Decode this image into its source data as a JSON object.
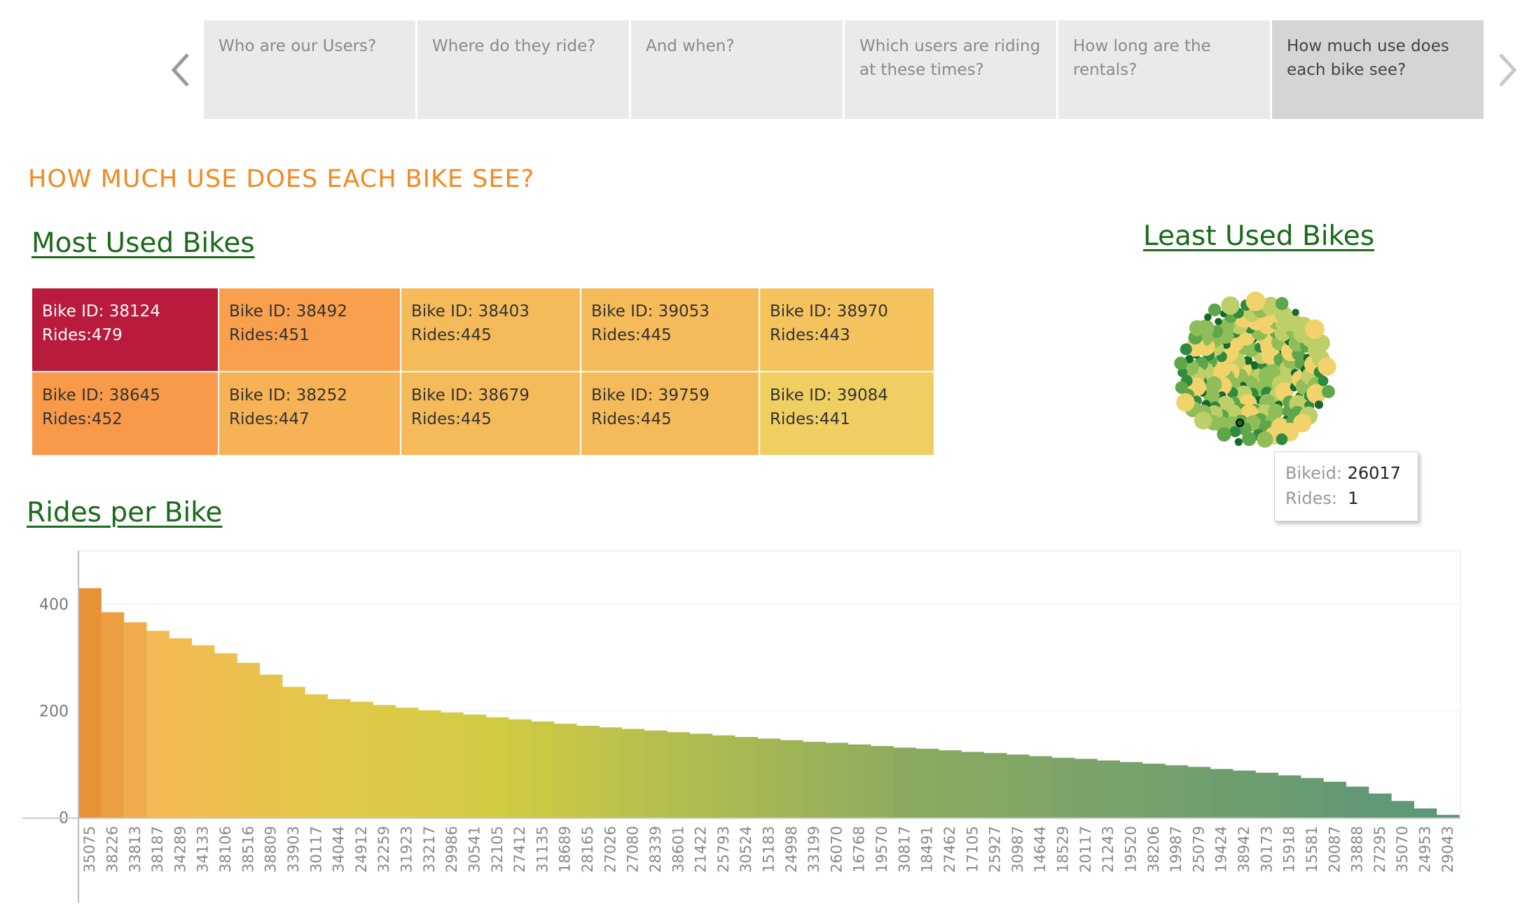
{
  "story": {
    "tabs": [
      {
        "label": "Who are our Users?",
        "active": false
      },
      {
        "label": "Where do they ride?",
        "active": false
      },
      {
        "label": "And when?",
        "active": false
      },
      {
        "label": "Which users are riding at these times?",
        "active": false
      },
      {
        "label": "How long are the rentals?",
        "active": false
      },
      {
        "label": "How much use does each bike see?",
        "active": true
      }
    ],
    "prev_icon": "chevron-left-icon",
    "next_icon": "chevron-right-icon"
  },
  "section_title": "HOW MUCH USE DOES EACH BIKE SEE?",
  "most_used": {
    "title": "Most Used Bikes",
    "id_label": "Bike ID: ",
    "rides_label": "Rides:",
    "tiles": [
      {
        "id": "38124",
        "rides": "479",
        "color": "#b81b3c"
      },
      {
        "id": "38492",
        "rides": "451",
        "color": "#f8a04e"
      },
      {
        "id": "38403",
        "rides": "445",
        "color": "#f5bb5a"
      },
      {
        "id": "39053",
        "rides": "445",
        "color": "#f5bb5a"
      },
      {
        "id": "38970",
        "rides": "443",
        "color": "#f5c35e"
      },
      {
        "id": "38645",
        "rides": "452",
        "color": "#f99a4a"
      },
      {
        "id": "38252",
        "rides": "447",
        "color": "#f7b256"
      },
      {
        "id": "38679",
        "rides": "445",
        "color": "#f5bb5a"
      },
      {
        "id": "39759",
        "rides": "445",
        "color": "#f5bb5a"
      },
      {
        "id": "39084",
        "rides": "441",
        "color": "#f0cf62"
      }
    ]
  },
  "least_used": {
    "title": "Least Used Bikes",
    "tooltip": {
      "bikeid_label": "Bikeid:",
      "bikeid": "26017",
      "rides_label": "Rides:",
      "rides": "1"
    },
    "palette": [
      "#f2d36b",
      "#bfcf68",
      "#8fbd57",
      "#5ea64a",
      "#2e8a3e",
      "#16692d"
    ]
  },
  "rides_per_bike": {
    "title": "Rides per Bike"
  },
  "chart_data": {
    "type": "bar",
    "title": "Rides per Bike",
    "xlabel": "",
    "ylabel": "",
    "ylim": [
      0,
      500
    ],
    "yticks": [
      0,
      200,
      400
    ],
    "grid": true,
    "categories": [
      "35075",
      "38226",
      "33813",
      "38187",
      "34289",
      "34133",
      "38106",
      "38516",
      "38809",
      "33903",
      "30117",
      "34044",
      "24912",
      "32259",
      "31923",
      "33217",
      "29986",
      "30541",
      "32105",
      "27412",
      "31135",
      "18689",
      "28165",
      "27026",
      "27080",
      "28339",
      "38601",
      "21422",
      "25793",
      "30524",
      "15183",
      "24998",
      "33199",
      "26070",
      "16768",
      "19570",
      "30817",
      "18491",
      "27462",
      "17105",
      "25927",
      "30987",
      "14644",
      "18529",
      "20117",
      "21243",
      "19520",
      "38206",
      "19987",
      "25079",
      "19424",
      "38942",
      "30173",
      "15918",
      "15581",
      "20087",
      "33888",
      "27295",
      "35070",
      "24953",
      "29043"
    ],
    "values": [
      430,
      385,
      366,
      350,
      336,
      323,
      308,
      290,
      268,
      245,
      231,
      222,
      217,
      211,
      206,
      201,
      197,
      193,
      188,
      184,
      180,
      176,
      172,
      169,
      166,
      163,
      160,
      157,
      154,
      151,
      148,
      145,
      142,
      140,
      137,
      134,
      131,
      129,
      126,
      123,
      121,
      118,
      115,
      112,
      110,
      107,
      104,
      101,
      98,
      95,
      91,
      88,
      84,
      79,
      74,
      67,
      58,
      45,
      31,
      17,
      5
    ]
  }
}
